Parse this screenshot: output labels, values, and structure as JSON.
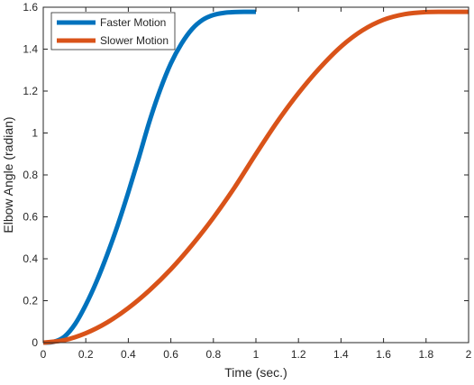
{
  "chart_data": {
    "type": "line",
    "xlabel": "Time (sec.)",
    "ylabel": "Elbow Angle (radian)",
    "xlim": [
      0,
      2
    ],
    "ylim": [
      0,
      1.6
    ],
    "xticks": [
      0,
      0.2,
      0.4,
      0.6,
      0.8,
      1,
      1.2,
      1.4,
      1.6,
      1.8,
      2
    ],
    "yticks": [
      0,
      0.2,
      0.4,
      0.6,
      0.8,
      1,
      1.2,
      1.4,
      1.6
    ],
    "grid": false,
    "legend_position": "top-left",
    "series": [
      {
        "name": "Faster Motion",
        "color": "#0072BD",
        "x": [
          0,
          0.05,
          0.1,
          0.15,
          0.2,
          0.25,
          0.3,
          0.35,
          0.4,
          0.45,
          0.5,
          0.55,
          0.6,
          0.65,
          0.7,
          0.75,
          0.8,
          0.85,
          0.9,
          0.95,
          1.0
        ],
        "y": [
          0.0,
          0.004,
          0.029,
          0.089,
          0.18,
          0.29,
          0.418,
          0.56,
          0.717,
          0.884,
          1.057,
          1.207,
          1.332,
          1.426,
          1.496,
          1.54,
          1.563,
          1.573,
          1.577,
          1.578,
          1.578
        ]
      },
      {
        "name": "Slower Motion",
        "color": "#D95319",
        "x": [
          0,
          0.1,
          0.2,
          0.3,
          0.4,
          0.5,
          0.6,
          0.7,
          0.8,
          0.9,
          1.0,
          1.1,
          1.2,
          1.3,
          1.4,
          1.5,
          1.6,
          1.7,
          1.8,
          1.9,
          2.0
        ],
        "y": [
          0.0,
          0.012,
          0.045,
          0.096,
          0.165,
          0.25,
          0.35,
          0.466,
          0.596,
          0.741,
          0.9,
          1.053,
          1.19,
          1.31,
          1.412,
          1.489,
          1.54,
          1.567,
          1.577,
          1.578,
          1.578
        ]
      }
    ]
  }
}
